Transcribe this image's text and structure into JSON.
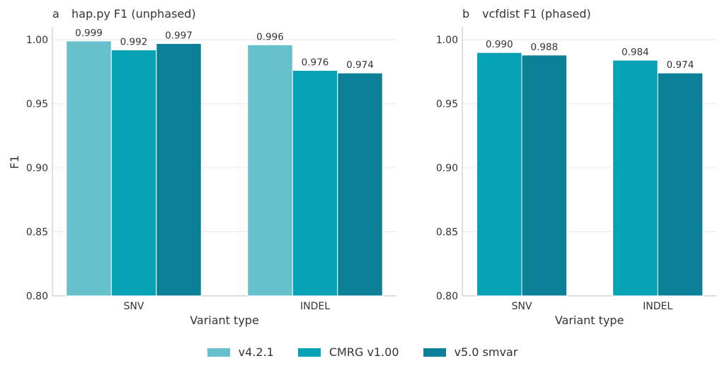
{
  "chart_data": [
    {
      "type": "bar",
      "panel_letter": "a",
      "title": "hap.py F1 (unphased)",
      "xlabel": "Variant type",
      "ylabel": "F1",
      "ylim": [
        0.8,
        1.01
      ],
      "yticks": [
        "0.80",
        "0.85",
        "0.90",
        "0.95",
        "1.00"
      ],
      "categories": [
        "SNV",
        "INDEL"
      ],
      "grid": "y",
      "series": [
        {
          "name": "v4.2.1",
          "values": [
            0.999,
            0.996
          ],
          "labels": [
            "0.999",
            "0.996"
          ]
        },
        {
          "name": "CMRG v1.00",
          "values": [
            0.992,
            0.976
          ],
          "labels": [
            "0.992",
            "0.976"
          ]
        },
        {
          "name": "v5.0 smvar",
          "values": [
            0.997,
            0.974
          ],
          "labels": [
            "0.997",
            "0.974"
          ]
        }
      ]
    },
    {
      "type": "bar",
      "panel_letter": "b",
      "title": "vcfdist F1 (phased)",
      "xlabel": "Variant type",
      "ylabel": "",
      "ylim": [
        0.8,
        1.01
      ],
      "yticks": [
        "0.80",
        "0.85",
        "0.90",
        "0.95",
        "1.00"
      ],
      "categories": [
        "SNV",
        "INDEL"
      ],
      "grid": "y",
      "series": [
        {
          "name": "CMRG v1.00",
          "values": [
            0.99,
            0.984
          ],
          "labels": [
            "0.990",
            "0.984"
          ]
        },
        {
          "name": "v5.0 smvar",
          "values": [
            0.988,
            0.974
          ],
          "labels": [
            "0.988",
            "0.974"
          ]
        }
      ]
    }
  ],
  "legend": {
    "placement": "bottom-center",
    "items": [
      {
        "label": "v4.2.1",
        "color": "#67c1cc"
      },
      {
        "label": "CMRG v1.00",
        "color": "#06a2b5"
      },
      {
        "label": "v5.0 smvar",
        "color": "#0c8097"
      }
    ]
  },
  "colors": {
    "v4.2.1": "#67c1cc",
    "CMRG v1.00": "#06a2b5",
    "v5.0 smvar": "#0c8097",
    "grid": "#e8e8e8",
    "axis": "#cccccc",
    "text": "#333333"
  }
}
